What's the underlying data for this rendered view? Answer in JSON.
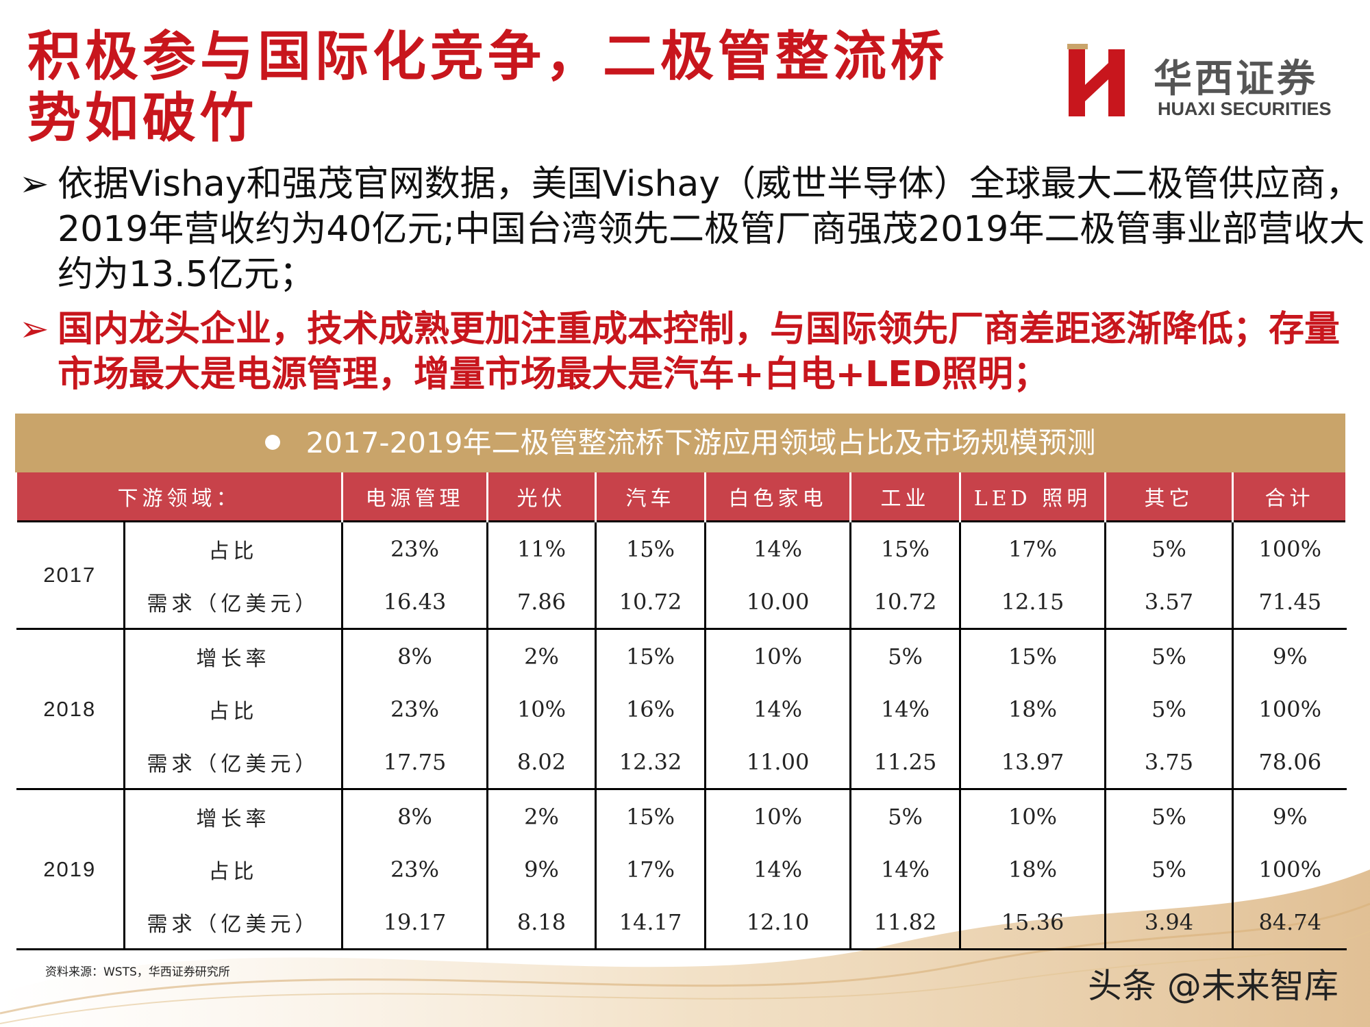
{
  "title": "积极参与国际化竞争，二极管整流桥势如破竹",
  "logo": {
    "cn": "华西证券",
    "en": "HUAXI SECURITIES",
    "brand_color": "#c8161d"
  },
  "bullets": [
    {
      "marker": "➢",
      "text": "依据Vishay和强茂官网数据，美国Vishay（威世半导体）全球最大二极管供应商，2019年营收约为40亿元;中国台湾领先二极管厂商强茂2019年二极管事业部营收大约为13.5亿元；"
    },
    {
      "marker": "➢",
      "text": "国内龙头企业，技术成熟更加注重成本控制，与国际领先厂商差距逐渐降低；存量市场最大是电源管理，增量市场最大是汽车+白电+LED照明；"
    }
  ],
  "table": {
    "title": "2017-2019年二极管整流桥下游应用领域占比及市场规模预测",
    "headers": [
      "下游领域：",
      "电源管理",
      "光伏",
      "汽车",
      "白色家电",
      "工业",
      "LED 照明",
      "其它",
      "合计"
    ],
    "groups": [
      {
        "year": "2017",
        "rows": [
          {
            "metric": "占比",
            "values": [
              "23%",
              "11%",
              "15%",
              "14%",
              "15%",
              "17%",
              "5%",
              "100%"
            ]
          },
          {
            "metric": "需求（亿美元）",
            "values": [
              "16.43",
              "7.86",
              "10.72",
              "10.00",
              "10.72",
              "12.15",
              "3.57",
              "71.45"
            ]
          }
        ]
      },
      {
        "year": "2018",
        "rows": [
          {
            "metric": "增长率",
            "values": [
              "8%",
              "2%",
              "15%",
              "10%",
              "5%",
              "15%",
              "5%",
              "9%"
            ]
          },
          {
            "metric": "占比",
            "values": [
              "23%",
              "10%",
              "16%",
              "14%",
              "14%",
              "18%",
              "5%",
              "100%"
            ]
          },
          {
            "metric": "需求（亿美元）",
            "values": [
              "17.75",
              "8.02",
              "12.32",
              "11.00",
              "11.25",
              "13.97",
              "3.75",
              "78.06"
            ]
          }
        ]
      },
      {
        "year": "2019",
        "rows": [
          {
            "metric": "增长率",
            "values": [
              "8%",
              "2%",
              "15%",
              "10%",
              "5%",
              "10%",
              "5%",
              "9%"
            ]
          },
          {
            "metric": "占比",
            "values": [
              "23%",
              "9%",
              "17%",
              "14%",
              "14%",
              "18%",
              "5%",
              "100%"
            ]
          },
          {
            "metric": "需求（亿美元）",
            "values": [
              "19.17",
              "8.18",
              "14.17",
              "12.10",
              "11.82",
              "15.36",
              "3.94",
              "84.74"
            ]
          }
        ]
      }
    ]
  },
  "source": "资料来源：WSTS，华西证券研究所",
  "watermark": "头条 @未来智库",
  "colors": {
    "accent_red": "#c8161d",
    "header_gold": "#c9a46a",
    "header_red": "#c8424a"
  }
}
